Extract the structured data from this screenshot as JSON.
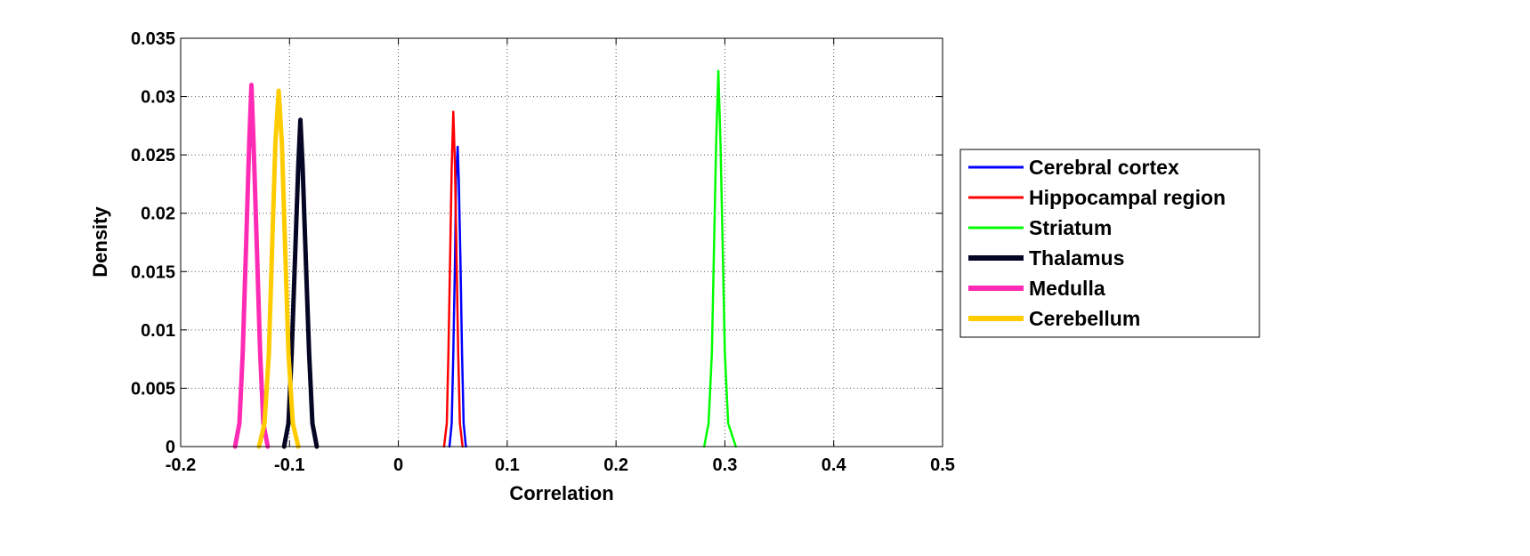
{
  "chart_data": {
    "type": "line",
    "title": "",
    "xlabel": "Correlation",
    "ylabel": "Density",
    "xlim": [
      -0.2,
      0.5
    ],
    "ylim": [
      0,
      0.035
    ],
    "x_ticks": [
      "-0.2",
      "-0.1",
      "0",
      "0.1",
      "0.2",
      "0.3",
      "0.4",
      "0.5"
    ],
    "y_ticks": [
      "0",
      "0.005",
      "0.01",
      "0.015",
      "0.02",
      "0.025",
      "0.03",
      "0.035"
    ],
    "grid": true,
    "legend_position": "outside-right",
    "series": [
      {
        "name": "Cerebral cortex",
        "color": "#0000ff",
        "stroke": "thin",
        "x": [
          0.047,
          0.049,
          0.0505,
          0.052,
          0.053,
          0.0545,
          0.0555,
          0.057,
          0.0585,
          0.06,
          0.062
        ],
        "y": [
          0,
          0.002,
          0.008,
          0.016,
          0.023,
          0.0257,
          0.023,
          0.016,
          0.008,
          0.002,
          0
        ]
      },
      {
        "name": "Hippocampal region",
        "color": "#ff0000",
        "stroke": "thin",
        "x": [
          0.042,
          0.0445,
          0.046,
          0.0475,
          0.049,
          0.0505,
          0.052,
          0.0535,
          0.055,
          0.0565,
          0.059
        ],
        "y": [
          0,
          0.002,
          0.008,
          0.016,
          0.024,
          0.0287,
          0.024,
          0.016,
          0.008,
          0.002,
          0
        ]
      },
      {
        "name": "Striatum",
        "color": "#00ff00",
        "stroke": "thin",
        "x": [
          0.281,
          0.285,
          0.288,
          0.29,
          0.292,
          0.294,
          0.296,
          0.298,
          0.3,
          0.303,
          0.31
        ],
        "y": [
          0,
          0.002,
          0.008,
          0.017,
          0.026,
          0.0322,
          0.026,
          0.017,
          0.008,
          0.002,
          0
        ]
      },
      {
        "name": "Thalamus",
        "color": "#050524",
        "stroke": "thick",
        "x": [
          -0.105,
          -0.101,
          -0.098,
          -0.095,
          -0.092,
          -0.09,
          -0.088,
          -0.085,
          -0.082,
          -0.079,
          -0.075
        ],
        "y": [
          0,
          0.002,
          0.008,
          0.016,
          0.024,
          0.028,
          0.024,
          0.016,
          0.008,
          0.002,
          0
        ]
      },
      {
        "name": "Medulla",
        "color": "#ff2bb5",
        "stroke": "thick",
        "x": [
          -0.15,
          -0.146,
          -0.143,
          -0.14,
          -0.137,
          -0.135,
          -0.133,
          -0.13,
          -0.127,
          -0.124,
          -0.12
        ],
        "y": [
          0,
          0.002,
          0.008,
          0.017,
          0.026,
          0.031,
          0.026,
          0.017,
          0.008,
          0.002,
          0
        ]
      },
      {
        "name": "Cerebellum",
        "color": "#ffcc00",
        "stroke": "thick",
        "x": [
          -0.128,
          -0.123,
          -0.119,
          -0.116,
          -0.113,
          -0.11,
          -0.107,
          -0.104,
          -0.101,
          -0.097,
          -0.092
        ],
        "y": [
          0,
          0.002,
          0.008,
          0.017,
          0.026,
          0.0305,
          0.026,
          0.017,
          0.008,
          0.002,
          0
        ]
      }
    ]
  }
}
